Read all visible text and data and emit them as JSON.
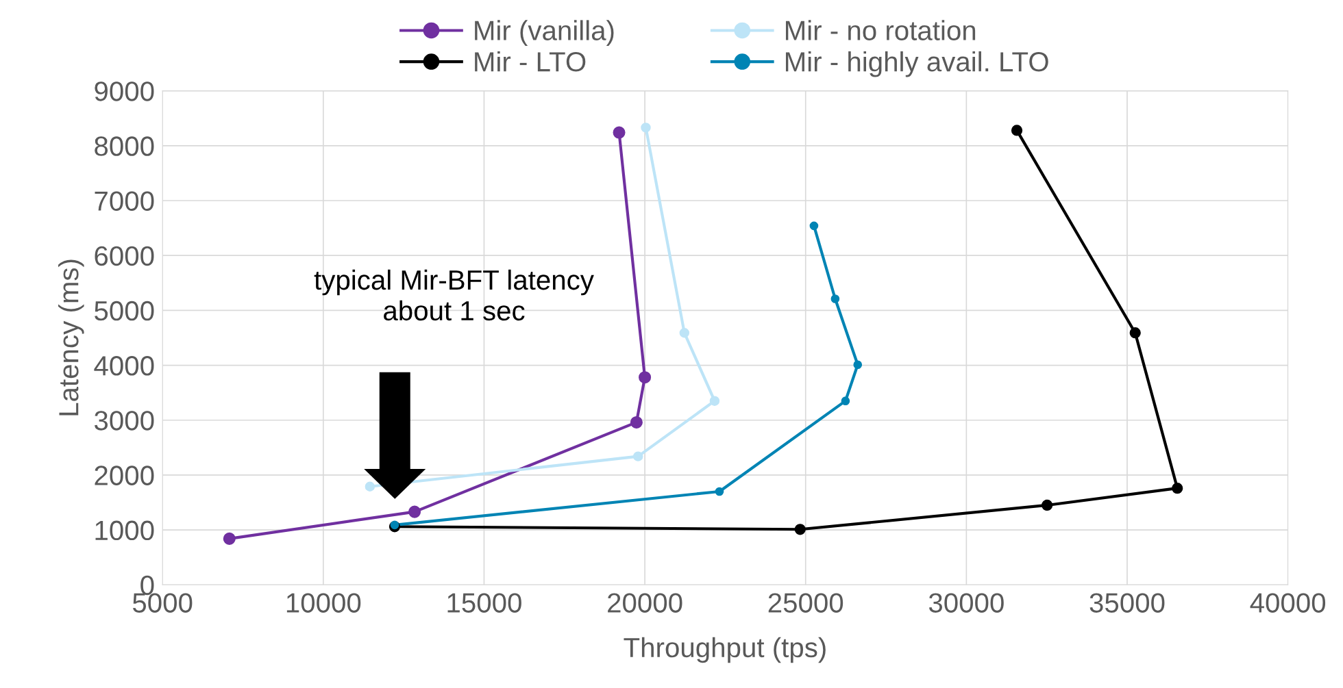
{
  "chart_data": {
    "type": "line",
    "xlabel": "Throughput (tps)",
    "ylabel": "Latency (ms)",
    "xlim": [
      5000,
      40000
    ],
    "xticks": [
      5000,
      10000,
      15000,
      20000,
      25000,
      30000,
      35000,
      40000
    ],
    "ylim": [
      0,
      9000
    ],
    "yticks": [
      0,
      1000,
      2000,
      3000,
      4000,
      5000,
      6000,
      7000,
      8000,
      9000
    ],
    "grid": true,
    "legend": "top",
    "marker": "circle",
    "line_style": "solid",
    "annotations": [
      "typical Mir-BFT latency\nabout 1 sec"
    ],
    "series": [
      {
        "name": "Mir (vanilla)",
        "color": "#7030a0",
        "x": [
          19200,
          20000,
          19740,
          12840,
          7080
        ],
        "values": [
          8240,
          3780,
          2960,
          1330,
          840
        ]
      },
      {
        "name": "Mir - LTO",
        "color": "#000000",
        "x": [
          31570,
          35250,
          36560,
          32510,
          24830,
          12220
        ],
        "values": [
          8280,
          4590,
          1760,
          1450,
          1010,
          1060
        ]
      },
      {
        "name": "Mir - no rotation",
        "color": "#bde4f7",
        "x": [
          20030,
          21230,
          22170,
          19790,
          11450
        ],
        "values": [
          8330,
          4590,
          3350,
          2340,
          1790
        ]
      },
      {
        "name": "Mir - highly avail. LTO",
        "color": "#0084b4",
        "x": [
          25260,
          25920,
          26620,
          26240,
          22320,
          12220
        ],
        "values": [
          6540,
          5210,
          4010,
          3350,
          1700,
          1090
        ]
      }
    ]
  }
}
